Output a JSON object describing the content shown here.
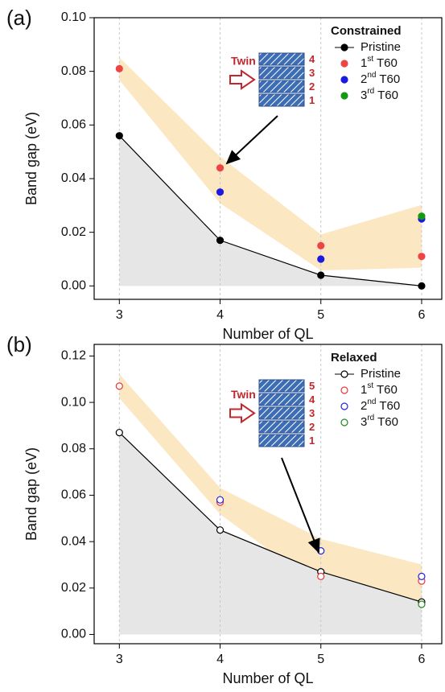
{
  "chart_data": [
    {
      "type": "scatter",
      "panel_label": "(a)",
      "x_label": "Number of QL",
      "y_label": "Band gap (eV)",
      "legend_title": "Constrained",
      "legend_position": "upper right",
      "grid": "x",
      "marker_fill": true,
      "x": [
        3,
        4,
        5,
        6
      ],
      "xlim": [
        2.75,
        6.2
      ],
      "xticks": [
        3,
        4,
        5,
        6
      ],
      "ylim": [
        -0.005,
        0.1
      ],
      "yticks": [
        {
          "value": 0,
          "label": "0.00"
        },
        {
          "value": 0.02,
          "label": "0.02"
        },
        {
          "value": 0.04,
          "label": "0.04"
        },
        {
          "value": 0.06,
          "label": "0.06"
        },
        {
          "value": 0.08,
          "label": "0.08"
        },
        {
          "value": 0.1,
          "label": "0.10"
        }
      ],
      "series": [
        {
          "name": "Pristine",
          "color": "#000000",
          "line": true,
          "values": [
            0.056,
            0.017,
            0.004,
            0.0
          ]
        },
        {
          "name": "1st T60",
          "color": "#ee4444",
          "values": [
            0.081,
            0.044,
            0.015,
            0.011
          ]
        },
        {
          "name": "2nd T60",
          "color": "#1a1ae0",
          "values": [
            null,
            0.035,
            0.01,
            0.025
          ]
        },
        {
          "name": "3rd T60",
          "color": "#139a13",
          "values": [
            null,
            null,
            null,
            0.026
          ]
        }
      ],
      "inset": {
        "label": "Twin",
        "layers": [
          4,
          3,
          2,
          1
        ]
      }
    },
    {
      "type": "scatter",
      "panel_label": "(b)",
      "x_label": "Number of QL",
      "y_label": "Band gap (eV)",
      "legend_title": "Relaxed",
      "legend_position": "upper right",
      "grid": "x",
      "marker_fill": false,
      "x": [
        3,
        4,
        5,
        6
      ],
      "xlim": [
        2.75,
        6.2
      ],
      "xticks": [
        3,
        4,
        5,
        6
      ],
      "ylim": [
        -0.004,
        0.125
      ],
      "yticks": [
        {
          "value": 0,
          "label": "0.00"
        },
        {
          "value": 0.02,
          "label": "0.02"
        },
        {
          "value": 0.04,
          "label": "0.04"
        },
        {
          "value": 0.06,
          "label": "0.06"
        },
        {
          "value": 0.08,
          "label": "0.08"
        },
        {
          "value": 0.1,
          "label": "0.10"
        },
        {
          "value": 0.12,
          "label": "0.12"
        }
      ],
      "series": [
        {
          "name": "Pristine",
          "color": "#000000",
          "line": true,
          "values": [
            0.087,
            0.045,
            0.027,
            0.014
          ]
        },
        {
          "name": "1st T60",
          "color": "#ee3333",
          "values": [
            0.107,
            0.057,
            0.025,
            0.023
          ]
        },
        {
          "name": "2nd T60",
          "color": "#2222dd",
          "values": [
            null,
            0.058,
            0.036,
            0.025
          ]
        },
        {
          "name": "3rd T60",
          "color": "#1a8a1a",
          "values": [
            null,
            null,
            null,
            0.013
          ]
        }
      ],
      "inset": {
        "label": "Twin",
        "layers": [
          5,
          4,
          3,
          2,
          1
        ]
      }
    }
  ]
}
